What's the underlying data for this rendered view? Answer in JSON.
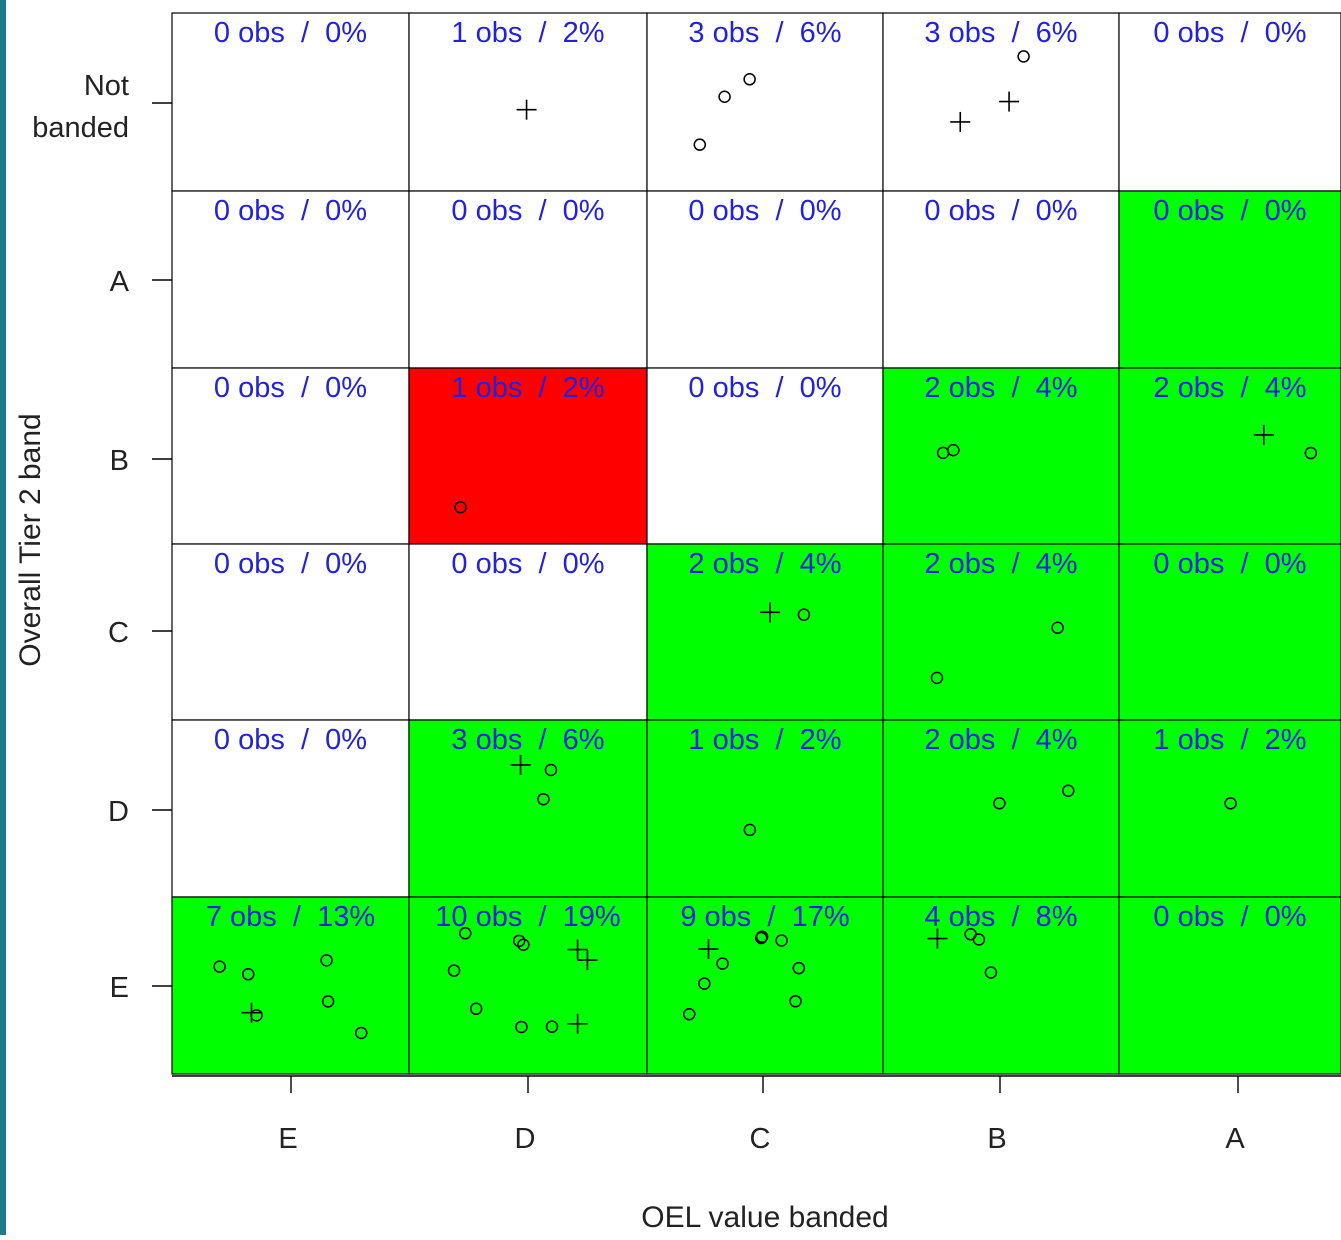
{
  "chart_data": {
    "type": "heatmap",
    "xlabel": "OEL value banded",
    "ylabel": "Overall Tier 2 band",
    "x_categories": [
      "E",
      "D",
      "C",
      "B",
      "A"
    ],
    "y_categories": [
      "Not banded",
      "A",
      "B",
      "C",
      "D",
      "E"
    ],
    "y_tick_lines": {
      "Not banded": [
        "Not",
        "banded"
      ]
    },
    "colors": {
      "match": "#00ff00",
      "mismatch": "#ff0000",
      "empty": "#ffffff",
      "label": "#2222dd",
      "frame": "#000000",
      "page_border": "#1b7a8c"
    },
    "cells": [
      {
        "row": "Not banded",
        "col": "E",
        "label": "0 obs  /  0%",
        "obs": 0,
        "pct": 0,
        "fill": "empty"
      },
      {
        "row": "Not banded",
        "col": "D",
        "label": "1 obs  /  2%",
        "obs": 1,
        "pct": 2,
        "fill": "empty"
      },
      {
        "row": "Not banded",
        "col": "C",
        "label": "3 obs  /  6%",
        "obs": 3,
        "pct": 6,
        "fill": "empty"
      },
      {
        "row": "Not banded",
        "col": "B",
        "label": "3 obs  /  6%",
        "obs": 3,
        "pct": 6,
        "fill": "empty"
      },
      {
        "row": "Not banded",
        "col": "A",
        "label": "0 obs  /  0%",
        "obs": 0,
        "pct": 0,
        "fill": "empty"
      },
      {
        "row": "A",
        "col": "E",
        "label": "0 obs  /  0%",
        "obs": 0,
        "pct": 0,
        "fill": "empty"
      },
      {
        "row": "A",
        "col": "D",
        "label": "0 obs  /  0%",
        "obs": 0,
        "pct": 0,
        "fill": "empty"
      },
      {
        "row": "A",
        "col": "C",
        "label": "0 obs  /  0%",
        "obs": 0,
        "pct": 0,
        "fill": "empty"
      },
      {
        "row": "A",
        "col": "B",
        "label": "0 obs  /  0%",
        "obs": 0,
        "pct": 0,
        "fill": "empty"
      },
      {
        "row": "A",
        "col": "A",
        "label": "0 obs  /  0%",
        "obs": 0,
        "pct": 0,
        "fill": "match"
      },
      {
        "row": "B",
        "col": "E",
        "label": "0 obs  /  0%",
        "obs": 0,
        "pct": 0,
        "fill": "empty"
      },
      {
        "row": "B",
        "col": "D",
        "label": "1 obs  /  2%",
        "obs": 1,
        "pct": 2,
        "fill": "mismatch"
      },
      {
        "row": "B",
        "col": "C",
        "label": "0 obs  /  0%",
        "obs": 0,
        "pct": 0,
        "fill": "empty"
      },
      {
        "row": "B",
        "col": "B",
        "label": "2 obs  /  4%",
        "obs": 2,
        "pct": 4,
        "fill": "match"
      },
      {
        "row": "B",
        "col": "A",
        "label": "2 obs  /  4%",
        "obs": 2,
        "pct": 4,
        "fill": "match"
      },
      {
        "row": "C",
        "col": "E",
        "label": "0 obs  /  0%",
        "obs": 0,
        "pct": 0,
        "fill": "empty"
      },
      {
        "row": "C",
        "col": "D",
        "label": "0 obs  /  0%",
        "obs": 0,
        "pct": 0,
        "fill": "empty"
      },
      {
        "row": "C",
        "col": "C",
        "label": "2 obs  /  4%",
        "obs": 2,
        "pct": 4,
        "fill": "match"
      },
      {
        "row": "C",
        "col": "B",
        "label": "2 obs  /  4%",
        "obs": 2,
        "pct": 4,
        "fill": "match"
      },
      {
        "row": "C",
        "col": "A",
        "label": "0 obs  /  0%",
        "obs": 0,
        "pct": 0,
        "fill": "match"
      },
      {
        "row": "D",
        "col": "E",
        "label": "0 obs  /  0%",
        "obs": 0,
        "pct": 0,
        "fill": "empty"
      },
      {
        "row": "D",
        "col": "D",
        "label": "3 obs  /  6%",
        "obs": 3,
        "pct": 6,
        "fill": "match"
      },
      {
        "row": "D",
        "col": "C",
        "label": "1 obs  /  2%",
        "obs": 1,
        "pct": 2,
        "fill": "match"
      },
      {
        "row": "D",
        "col": "B",
        "label": "2 obs  /  4%",
        "obs": 2,
        "pct": 4,
        "fill": "match"
      },
      {
        "row": "D",
        "col": "A",
        "label": "1 obs  /  2%",
        "obs": 1,
        "pct": 2,
        "fill": "match"
      },
      {
        "row": "E",
        "col": "E",
        "label": "7 obs  /  13%",
        "obs": 7,
        "pct": 13,
        "fill": "match"
      },
      {
        "row": "E",
        "col": "D",
        "label": "10 obs  /  19%",
        "obs": 10,
        "pct": 19,
        "fill": "match"
      },
      {
        "row": "E",
        "col": "C",
        "label": "9 obs  /  17%",
        "obs": 9,
        "pct": 17,
        "fill": "match"
      },
      {
        "row": "E",
        "col": "B",
        "label": "4 obs  /  8%",
        "obs": 4,
        "pct": 8,
        "fill": "match"
      },
      {
        "row": "E",
        "col": "A",
        "label": "0 obs  /  0%",
        "obs": 0,
        "pct": 0,
        "fill": "match"
      }
    ]
  }
}
